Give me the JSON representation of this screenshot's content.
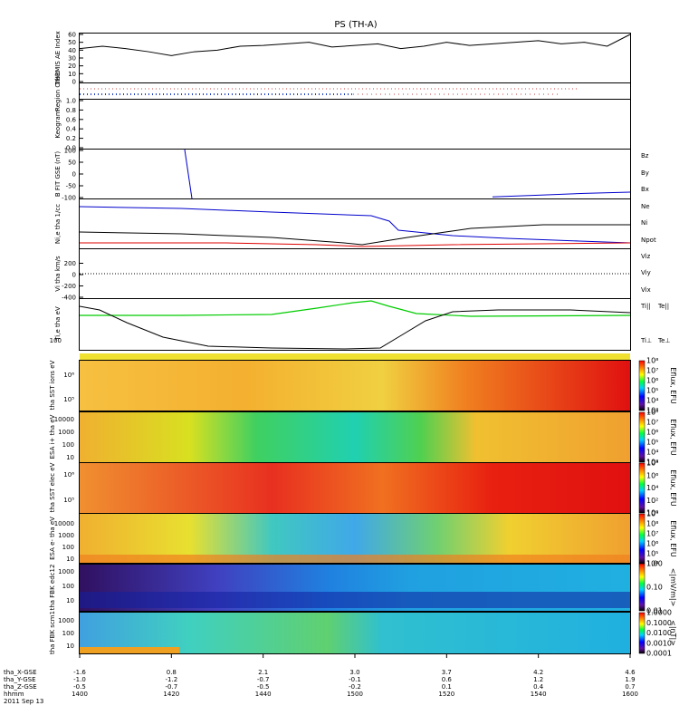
{
  "title": "PS (TH-A)",
  "colors": {
    "bx": "#0000cc",
    "by": "#00cc00",
    "bz": "#dd0000",
    "ni": "#000000",
    "ne": "#dd0000",
    "npot": "#0000cc",
    "ti_par": "#00cc00",
    "te_par": "#000000"
  },
  "footer": {
    "row_labels": [
      "tha_X-GSE",
      "tha_Y-GSE",
      "tha_Z-GSE",
      "hhmm",
      "2011 Sep 13"
    ],
    "columns": [
      {
        "x": "-1.6",
        "y": "-1.0",
        "z": "-0.5",
        "t": "1400"
      },
      {
        "x": "0.8",
        "y": "-1.2",
        "z": "-0.7",
        "t": "1420"
      },
      {
        "x": "2.1",
        "y": "-0.7",
        "z": "-0.5",
        "t": "1440"
      },
      {
        "x": "3.0",
        "y": "-0.1",
        "z": "-0.2",
        "t": "1500"
      },
      {
        "x": "3.7",
        "y": "0.6",
        "z": "0.1",
        "t": "1520"
      },
      {
        "x": "4.2",
        "y": "1.2",
        "z": "0.4",
        "t": "1540"
      },
      {
        "x": "4.6",
        "y": "1.9",
        "z": "0.7",
        "t": "1600"
      }
    ]
  },
  "chart_data": [
    {
      "type": "line",
      "ylabel": "THEMIS AE Index",
      "ylim": [
        0,
        60
      ],
      "yticks": [
        "0",
        "10",
        "20",
        "30",
        "40",
        "50",
        "60"
      ],
      "x_minutes": [
        0,
        5,
        10,
        15,
        20,
        25,
        30,
        35,
        40,
        45,
        50,
        55,
        60,
        65,
        70,
        75,
        80,
        85,
        90,
        95,
        100,
        105,
        110,
        115,
        120
      ],
      "values": [
        42,
        45,
        42,
        38,
        33,
        38,
        40,
        45,
        46,
        48,
        50,
        44,
        46,
        48,
        42,
        45,
        50,
        46,
        48,
        50,
        52,
        48,
        50,
        45,
        60
      ]
    },
    {
      "type": "line",
      "ylabel": "Region Orbit"
    },
    {
      "type": "line",
      "ylabel": "Keogram",
      "ylim": [
        0,
        1.0
      ],
      "yticks": [
        "0.0",
        "0.2",
        "0.4",
        "0.6",
        "0.8",
        "1.0"
      ]
    },
    {
      "type": "line",
      "ylabel": "B FIT GSE (nT)",
      "ylim": [
        -100,
        100
      ],
      "yticks": [
        "-100",
        "-50",
        "0",
        "50",
        "100"
      ],
      "legend": [
        "Bz",
        "By",
        "Bx"
      ],
      "series": [
        {
          "name": "Bx",
          "x_minutes": [
            90,
            100,
            110,
            120
          ],
          "values": [
            -97,
            -90,
            -82,
            -77
          ]
        }
      ]
    },
    {
      "type": "line",
      "ylabel": "Ni,e tha 1/cc",
      "legend": [
        "Ne",
        "Ni",
        "Npot"
      ]
    },
    {
      "type": "line",
      "ylabel": "Vi tha km/s",
      "ylim": [
        -400,
        400
      ],
      "yticks": [
        "-400",
        "-200",
        "0",
        "200"
      ],
      "legend": [
        "Viz",
        "Viy",
        "Vix"
      ]
    },
    {
      "type": "line",
      "ylabel": "Ti,e tha eV",
      "yticks": [
        "100"
      ],
      "legend": [
        "Ti||",
        "Te||",
        "Ti⊥",
        "Te⊥"
      ]
    },
    {
      "type": "heatmap",
      "ylabel": "tha SST ions eV",
      "yticks": [
        "10⁵",
        "10⁶"
      ],
      "colorbar_label": "Eflux, EFU",
      "colorbar_ticks": [
        "10³",
        "10⁴",
        "10⁵",
        "10⁶",
        "10⁷",
        "10⁸"
      ]
    },
    {
      "type": "heatmap",
      "ylabel": "ESA i+ tha eV",
      "yticks": [
        "10",
        "100",
        "1000",
        "10000"
      ],
      "colorbar_label": "Eflux, EFU",
      "colorbar_ticks": [
        "10³",
        "10⁴",
        "10⁵",
        "10⁶",
        "10⁷",
        "10⁸"
      ]
    },
    {
      "type": "heatmap",
      "ylabel": "tha SST elec eV",
      "yticks": [
        "10⁵",
        "10⁶"
      ],
      "colorbar_label": "Eflux, EFU",
      "colorbar_ticks": [
        "10⁰",
        "10²",
        "10⁴",
        "10⁶",
        "10⁸"
      ]
    },
    {
      "type": "heatmap",
      "ylabel": "ESA e- tha eV",
      "yticks": [
        "10",
        "100",
        "1000",
        "10000"
      ],
      "colorbar_label": "Eflux, EFU",
      "colorbar_ticks": [
        "10⁴",
        "10⁵",
        "10⁶",
        "10⁷",
        "10⁸",
        "10⁹"
      ]
    },
    {
      "type": "heatmap",
      "ylabel": "tha FBK edc12",
      "yticks": [
        "10",
        "100",
        "1000"
      ],
      "colorbar_label": "<|mV/m|>",
      "colorbar_ticks": [
        "0.01",
        "0.10",
        "1.00"
      ]
    },
    {
      "type": "heatmap",
      "ylabel": "tha FBK scm1",
      "yticks": [
        "10",
        "100",
        "1000"
      ],
      "colorbar_label": "<|nT|>",
      "colorbar_ticks": [
        "0.0001",
        "0.0010",
        "0.0100",
        "0.1000",
        "1.0000"
      ]
    }
  ]
}
